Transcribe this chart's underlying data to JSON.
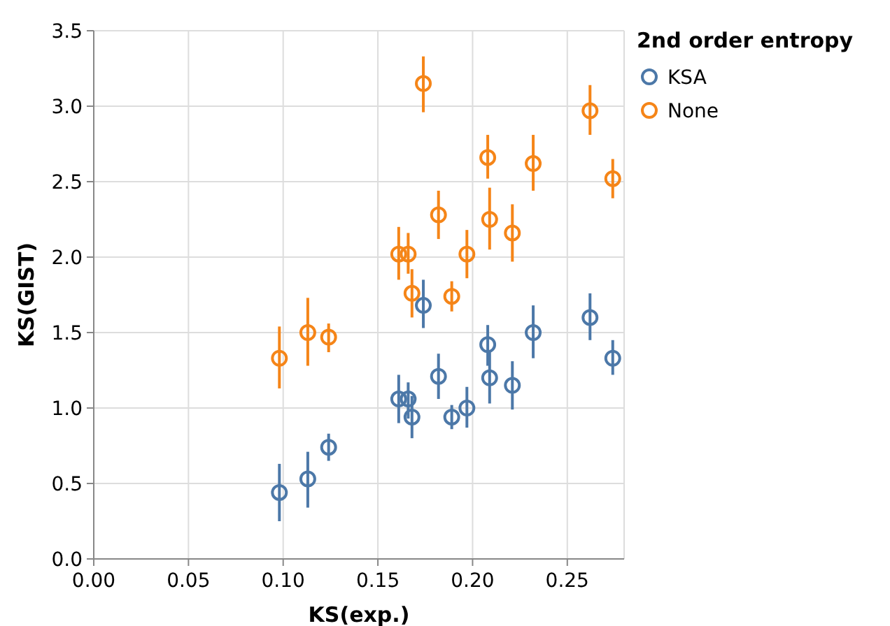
{
  "chart_data": {
    "type": "scatter",
    "xlabel": "KS(exp.)",
    "ylabel": "KS(GIST)",
    "legend_title": "2nd order entropy",
    "xlim": [
      0,
      0.28
    ],
    "xticks": [
      {
        "value": 0,
        "label": "0.00"
      },
      0.05,
      {
        "value": 0.1,
        "label": "0.10"
      },
      0.15,
      {
        "value": 0.2,
        "label": "0.20"
      },
      0.25
    ],
    "ylim": [
      0,
      3.5
    ],
    "yticks": [
      {
        "value": 0,
        "label": "0.0"
      },
      0.5,
      {
        "value": 1,
        "label": "1.0"
      },
      1.5,
      {
        "value": 2,
        "label": "2.0"
      },
      2.5,
      {
        "value": 3,
        "label": "3.0"
      },
      3.5
    ],
    "grid": true,
    "legend": "top right",
    "marker": "circle",
    "x": [
      0.098,
      0.113,
      0.124,
      0.161,
      0.166,
      0.168,
      0.174,
      0.182,
      0.189,
      0.197,
      0.208,
      0.209,
      0.221,
      0.232,
      0.262,
      0.274
    ],
    "series": [
      {
        "name": "KSA",
        "color": "#4c78a8",
        "values": [
          0.44,
          0.53,
          0.74,
          1.06,
          1.06,
          0.94,
          1.68,
          1.21,
          0.94,
          1.0,
          1.42,
          1.2,
          1.15,
          1.5,
          1.6,
          1.33
        ],
        "errors": [
          [
            0.25,
            0.63
          ],
          [
            0.34,
            0.71
          ],
          [
            0.65,
            0.83
          ],
          [
            0.9,
            1.22
          ],
          [
            0.93,
            1.17
          ],
          [
            0.8,
            1.08
          ],
          [
            1.53,
            1.85
          ],
          [
            1.06,
            1.36
          ],
          [
            0.86,
            1.02
          ],
          [
            0.87,
            1.14
          ],
          [
            1.28,
            1.55
          ],
          [
            1.03,
            1.37
          ],
          [
            0.99,
            1.31
          ],
          [
            1.33,
            1.68
          ],
          [
            1.45,
            1.76
          ],
          [
            1.22,
            1.45
          ]
        ]
      },
      {
        "name": "None",
        "color": "#f58518",
        "values": [
          1.33,
          1.5,
          1.47,
          2.02,
          2.02,
          1.76,
          3.15,
          2.28,
          1.74,
          2.02,
          2.66,
          2.25,
          2.16,
          2.62,
          2.97,
          2.52
        ],
        "errors": [
          [
            1.13,
            1.54
          ],
          [
            1.28,
            1.73
          ],
          [
            1.37,
            1.56
          ],
          [
            1.85,
            2.2
          ],
          [
            1.89,
            2.16
          ],
          [
            1.6,
            1.92
          ],
          [
            2.96,
            3.33
          ],
          [
            2.12,
            2.44
          ],
          [
            1.64,
            1.84
          ],
          [
            1.86,
            2.18
          ],
          [
            2.52,
            2.81
          ],
          [
            2.05,
            2.46
          ],
          [
            1.97,
            2.35
          ],
          [
            2.44,
            2.81
          ],
          [
            2.81,
            3.14
          ],
          [
            2.39,
            2.65
          ]
        ]
      }
    ]
  }
}
